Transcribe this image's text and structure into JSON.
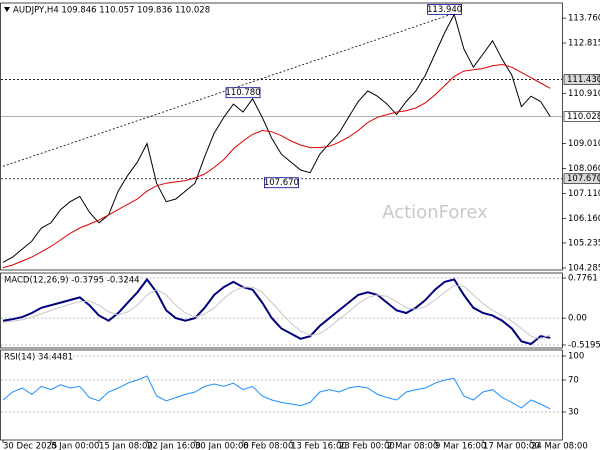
{
  "chart_data": [
    {
      "type": "line",
      "title": "AUDJPY,H4 109.846 110.057 109.836 110.028",
      "ylim": [
        104.209,
        114.333
      ],
      "yticks": [
        {
          "value": 113.76,
          "label": "113.760"
        },
        {
          "value": 112.815,
          "label": "112.815"
        },
        {
          "value": 110.91,
          "label": "110.910"
        },
        {
          "value": 109.01,
          "label": "109.010"
        },
        {
          "value": 108.06,
          "label": "108.060"
        },
        {
          "value": 107.11,
          "label": "107.110"
        },
        {
          "value": 106.16,
          "label": "106.160"
        },
        {
          "value": 105.235,
          "label": "105.235"
        },
        {
          "value": 104.285,
          "label": "104.285"
        }
      ],
      "grid": false,
      "series": [
        {
          "name": "AUDJPY",
          "color": "#000000",
          "width": 1,
          "values": [
            104.5,
            104.7,
            105.0,
            105.3,
            105.8,
            106.0,
            106.5,
            106.8,
            107.0,
            106.4,
            106.0,
            106.3,
            107.2,
            107.8,
            108.3,
            109.0,
            107.5,
            106.8,
            106.9,
            107.2,
            107.5,
            108.5,
            109.4,
            110.0,
            110.5,
            110.2,
            110.7,
            110.0,
            109.2,
            108.6,
            108.3,
            108.0,
            107.9,
            108.6,
            109.0,
            109.4,
            110.0,
            110.6,
            111.0,
            110.8,
            110.5,
            110.1,
            110.6,
            111.0,
            111.6,
            112.4,
            113.2,
            113.9,
            112.6,
            111.9,
            112.4,
            112.9,
            112.2,
            111.6,
            110.4,
            110.8,
            110.6,
            110.03
          ]
        },
        {
          "name": "MA",
          "color": "#e00000",
          "width": 1,
          "values": [
            104.3,
            104.4,
            104.55,
            104.7,
            104.9,
            105.1,
            105.35,
            105.6,
            105.8,
            105.95,
            106.1,
            106.3,
            106.5,
            106.7,
            106.9,
            107.2,
            107.4,
            107.5,
            107.55,
            107.6,
            107.7,
            107.85,
            108.1,
            108.4,
            108.8,
            109.1,
            109.35,
            109.5,
            109.45,
            109.3,
            109.1,
            108.95,
            108.85,
            108.85,
            108.9,
            109.05,
            109.25,
            109.5,
            109.8,
            110.0,
            110.1,
            110.2,
            110.25,
            110.35,
            110.55,
            110.85,
            111.2,
            111.55,
            111.75,
            111.8,
            111.85,
            111.95,
            112.0,
            111.9,
            111.7,
            111.5,
            111.3,
            111.1
          ]
        }
      ],
      "levels": [
        {
          "value": 111.43,
          "label": "111.430",
          "style": "dotted"
        },
        {
          "value": 110.028,
          "label": "110.028",
          "style": "solid"
        },
        {
          "value": 107.67,
          "label": "107.670",
          "style": "dotted"
        }
      ],
      "annotations": [
        {
          "x": 46,
          "value": 113.94,
          "label": "113.940"
        },
        {
          "x": 25,
          "value": 110.78,
          "label": "110.780"
        },
        {
          "x": 29,
          "value": 107.67,
          "label": "107.670"
        }
      ],
      "trendline": {
        "x": [
          0,
          47
        ],
        "y": [
          108.14,
          113.94
        ]
      },
      "watermark": "ActionForex"
    },
    {
      "type": "line",
      "title": "MACD(12,26,9) -0.3795 -0.3244",
      "ylim": [
        -0.578,
        0.873
      ],
      "yticks": [
        0.7761,
        {
          "value": 0,
          "label": "0.00"
        },
        -0.5195
      ],
      "grid": "dotted",
      "series": [
        {
          "name": "MACD",
          "color": "#000080",
          "width": 2,
          "values": [
            -0.05,
            -0.02,
            0.02,
            0.1,
            0.2,
            0.25,
            0.3,
            0.35,
            0.4,
            0.25,
            0.05,
            -0.05,
            0.1,
            0.3,
            0.5,
            0.75,
            0.5,
            0.15,
            0.0,
            -0.05,
            0.0,
            0.2,
            0.45,
            0.6,
            0.7,
            0.6,
            0.55,
            0.3,
            0.0,
            -0.2,
            -0.3,
            -0.4,
            -0.35,
            -0.15,
            0.0,
            0.15,
            0.3,
            0.45,
            0.5,
            0.45,
            0.3,
            0.15,
            0.1,
            0.2,
            0.35,
            0.55,
            0.7,
            0.75,
            0.45,
            0.2,
            0.1,
            0.05,
            -0.05,
            -0.2,
            -0.45,
            -0.5,
            -0.35,
            -0.38
          ]
        },
        {
          "name": "Signal",
          "color": "#c8c8c8",
          "width": 1,
          "values": [
            -0.08,
            -0.06,
            -0.03,
            0.02,
            0.08,
            0.15,
            0.21,
            0.27,
            0.32,
            0.33,
            0.25,
            0.12,
            0.06,
            0.12,
            0.25,
            0.45,
            0.55,
            0.45,
            0.25,
            0.1,
            0.02,
            0.08,
            0.2,
            0.38,
            0.52,
            0.6,
            0.6,
            0.5,
            0.3,
            0.1,
            -0.1,
            -0.25,
            -0.33,
            -0.3,
            -0.18,
            -0.02,
            0.12,
            0.28,
            0.4,
            0.45,
            0.42,
            0.32,
            0.2,
            0.17,
            0.22,
            0.35,
            0.5,
            0.63,
            0.62,
            0.45,
            0.28,
            0.15,
            0.05,
            -0.06,
            -0.2,
            -0.35,
            -0.4,
            -0.32
          ]
        }
      ]
    },
    {
      "type": "line",
      "title": "RSI(14) 34.4481",
      "ylim": [
        -5,
        107.5
      ],
      "yticks": [
        100,
        70,
        30
      ],
      "grid": "dotted",
      "categories": [
        "30 Dec 2025",
        null,
        null,
        null,
        null,
        "8 Jan 00:00",
        null,
        null,
        null,
        null,
        "15 Jan 08:00",
        null,
        null,
        null,
        null,
        "22 Jan 16:00",
        null,
        null,
        null,
        null,
        "30 Jan 00:00",
        null,
        null,
        null,
        null,
        "6 Feb 08:00",
        null,
        null,
        null,
        null,
        "13 Feb 16:00",
        null,
        null,
        null,
        null,
        "23 Feb 00:00",
        null,
        null,
        null,
        null,
        "2 Mar 08:00",
        null,
        null,
        null,
        null,
        "9 Mar 16:00",
        null,
        null,
        null,
        null,
        "17 Mar 00:00",
        null,
        null,
        null,
        null,
        "24 Mar 08:00",
        null,
        null
      ],
      "series": [
        {
          "name": "RSI",
          "color": "#1e90ff",
          "width": 1,
          "values": [
            45,
            55,
            60,
            52,
            62,
            58,
            64,
            60,
            62,
            48,
            44,
            55,
            60,
            66,
            70,
            75,
            50,
            44,
            48,
            52,
            55,
            62,
            65,
            62,
            66,
            58,
            62,
            50,
            45,
            42,
            40,
            38,
            42,
            55,
            58,
            55,
            60,
            62,
            60,
            52,
            48,
            45,
            55,
            58,
            60,
            66,
            70,
            72,
            50,
            45,
            55,
            58,
            48,
            42,
            35,
            45,
            40,
            34
          ]
        }
      ]
    }
  ]
}
